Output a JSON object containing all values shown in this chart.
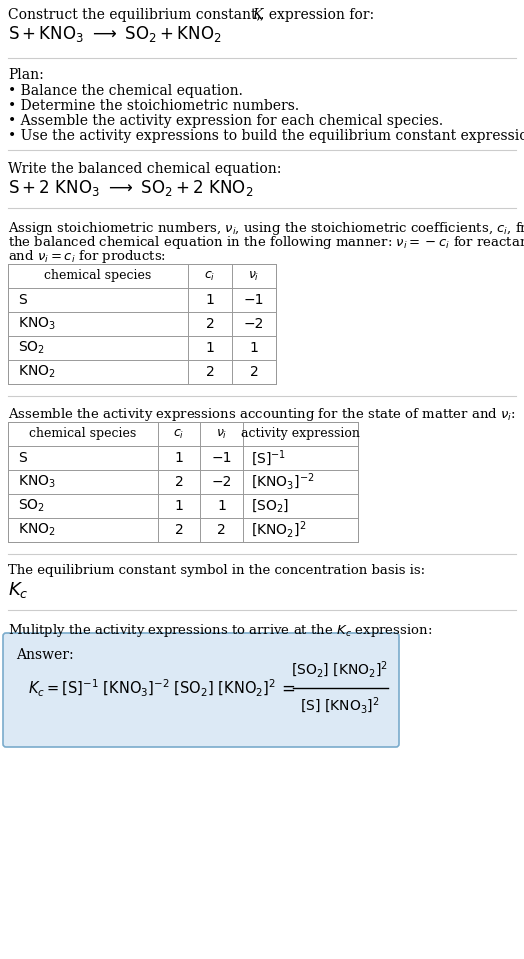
{
  "bg_color": "#ffffff",
  "text_color": "#000000",
  "table_border_color": "#999999",
  "answer_box_color": "#dce9f5",
  "answer_box_border": "#7aabcc",
  "font_size": 10.5,
  "line_color": "#cccccc"
}
